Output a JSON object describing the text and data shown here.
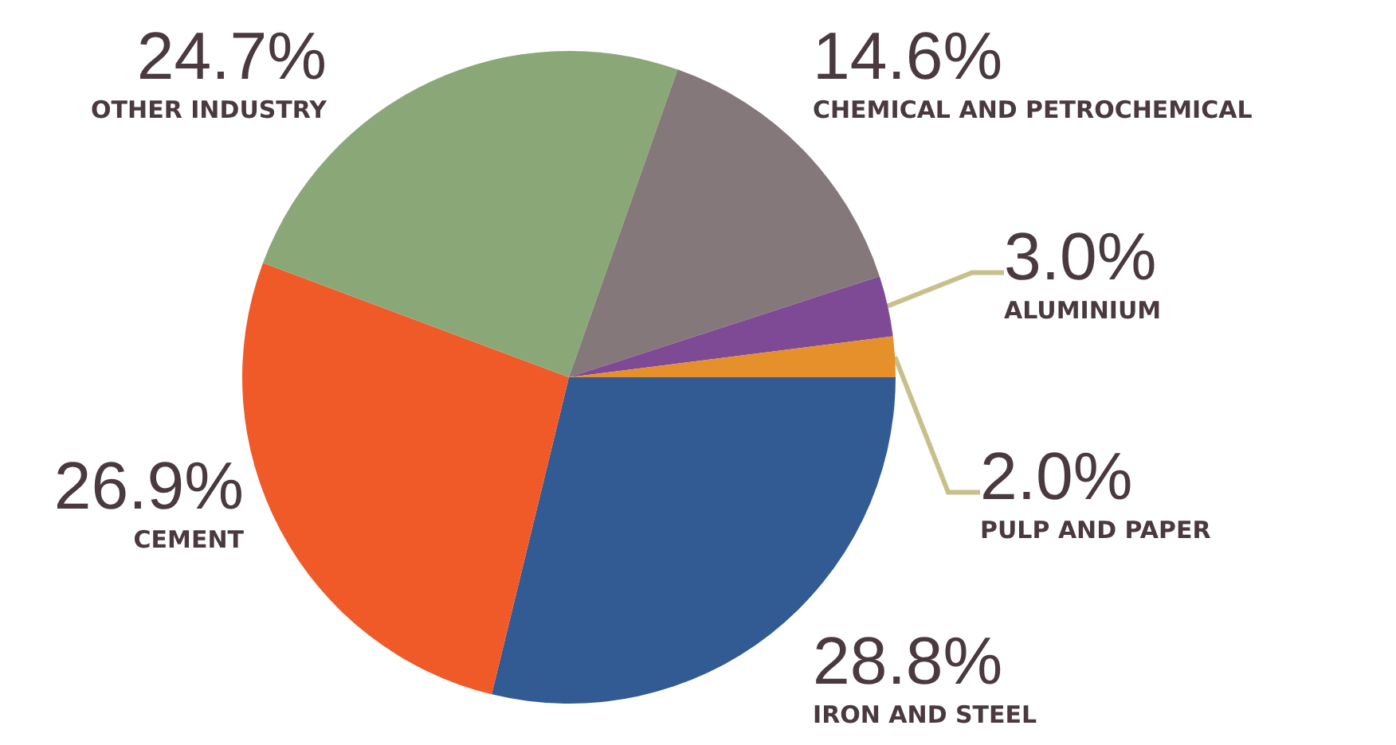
{
  "chart_data": {
    "type": "pie",
    "categories": [
      "IRON AND STEEL",
      "CEMENT",
      "OTHER INDUSTRY",
      "CHEMICAL AND PETROCHEMICAL",
      "ALUMINIUM",
      "PULP AND PAPER"
    ],
    "values": [
      28.8,
      26.9,
      24.7,
      14.6,
      3.0,
      2.0
    ],
    "colors": [
      "#335b93",
      "#f05a28",
      "#8aa877",
      "#85787b",
      "#7f4a95",
      "#e5902a"
    ],
    "value_labels": [
      "28.8%",
      "26.9%",
      "24.7%",
      "14.6%",
      "3.0%",
      "2.0%"
    ]
  }
}
